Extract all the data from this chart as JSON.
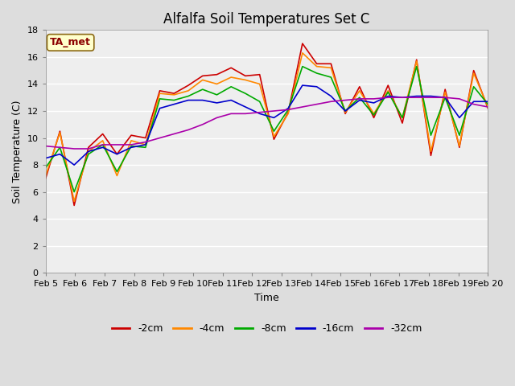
{
  "title": "Alfalfa Soil Temperatures Set C",
  "xlabel": "Time",
  "ylabel": "Soil Temperature (C)",
  "ylim": [
    0,
    18
  ],
  "x_tick_labels": [
    "Feb 5",
    "Feb 6",
    "Feb 7",
    "Feb 8",
    "Feb 9",
    "Feb 10",
    "Feb 11",
    "Feb 12",
    "Feb 13",
    "Feb 14",
    "Feb 15",
    "Feb 16",
    "Feb 17",
    "Feb 18",
    "Feb 19",
    "Feb 20"
  ],
  "annotation": "TA_met",
  "series": {
    "-2cm": {
      "color": "#cc0000",
      "data": [
        7.0,
        10.5,
        5.0,
        9.3,
        10.3,
        8.8,
        10.2,
        10.0,
        13.5,
        13.3,
        13.9,
        14.6,
        14.7,
        15.2,
        14.6,
        14.7,
        9.9,
        11.9,
        17.0,
        15.5,
        15.5,
        11.8,
        13.8,
        11.5,
        13.9,
        11.1,
        15.8,
        8.7,
        13.6,
        9.3,
        15.0,
        12.2
      ]
    },
    "-4cm": {
      "color": "#ff8800",
      "data": [
        7.2,
        10.4,
        5.3,
        9.0,
        9.8,
        7.2,
        9.8,
        9.5,
        13.3,
        13.2,
        13.5,
        14.3,
        14.0,
        14.5,
        14.3,
        14.0,
        10.1,
        11.8,
        16.3,
        15.3,
        15.2,
        11.9,
        13.5,
        11.8,
        13.5,
        11.5,
        15.7,
        9.0,
        13.4,
        9.4,
        14.8,
        12.3
      ]
    },
    "-8cm": {
      "color": "#00aa00",
      "data": [
        7.8,
        9.3,
        6.0,
        8.8,
        9.5,
        7.5,
        9.4,
        9.3,
        12.9,
        12.8,
        13.1,
        13.6,
        13.2,
        13.8,
        13.3,
        12.7,
        10.5,
        12.1,
        15.3,
        14.8,
        14.5,
        12.0,
        13.0,
        11.7,
        13.4,
        11.5,
        15.3,
        10.2,
        13.0,
        10.2,
        13.8,
        12.5
      ]
    },
    "-16cm": {
      "color": "#0000cc",
      "data": [
        8.5,
        8.8,
        8.0,
        9.0,
        9.3,
        8.8,
        9.3,
        9.5,
        12.2,
        12.5,
        12.8,
        12.8,
        12.6,
        12.8,
        12.3,
        11.8,
        11.5,
        12.2,
        13.9,
        13.8,
        13.1,
        12.0,
        12.8,
        12.6,
        13.1,
        13.0,
        13.1,
        13.1,
        13.0,
        11.5,
        12.7,
        12.7
      ]
    },
    "-32cm": {
      "color": "#aa00aa",
      "data": [
        9.4,
        9.3,
        9.2,
        9.2,
        9.5,
        9.5,
        9.5,
        9.7,
        10.0,
        10.3,
        10.6,
        11.0,
        11.5,
        11.8,
        11.8,
        11.9,
        12.0,
        12.1,
        12.3,
        12.5,
        12.7,
        12.8,
        12.9,
        12.9,
        13.0,
        13.0,
        13.0,
        13.0,
        13.0,
        12.9,
        12.5,
        12.3
      ]
    }
  },
  "legend_order": [
    "-2cm",
    "-4cm",
    "-8cm",
    "-16cm",
    "-32cm"
  ],
  "fig_facecolor": "#dddddd",
  "plot_bg_color": "#eeeeee",
  "grid_color": "#ffffff",
  "title_fontsize": 12,
  "axis_label_fontsize": 9,
  "tick_fontsize": 8,
  "legend_fontsize": 9
}
